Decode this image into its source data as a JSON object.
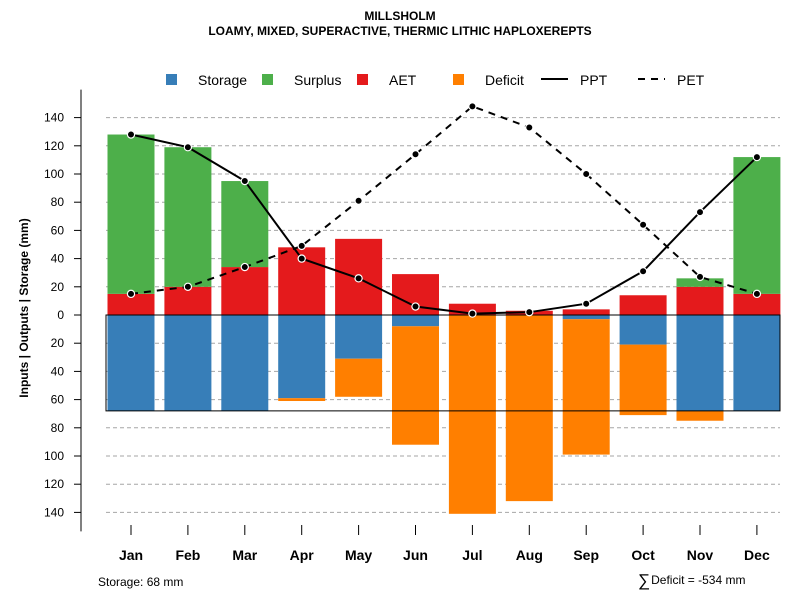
{
  "title": "MILLSHOLM",
  "subtitle": "LOAMY, MIXED, SUPERACTIVE, THERMIC LITHIC HAPLOXEREPTS",
  "legend": [
    {
      "key": "storage",
      "label": "Storage",
      "kind": "box"
    },
    {
      "key": "surplus",
      "label": "Surplus",
      "kind": "box"
    },
    {
      "key": "aet",
      "label": "AET",
      "kind": "box"
    },
    {
      "key": "deficit",
      "label": "Deficit",
      "kind": "box"
    },
    {
      "key": "ppt",
      "label": "PPT",
      "kind": "solid"
    },
    {
      "key": "pet",
      "label": "PET",
      "kind": "dashed"
    }
  ],
  "colors": {
    "storage": "#377EB8",
    "surplus": "#4DAF4A",
    "aet": "#E41A1C",
    "deficit": "#FF7F00",
    "grid": "#a6a6a6",
    "line": "#000000"
  },
  "footer": {
    "storage_text": "Storage: 68 mm",
    "deficit_text": "Deficit = -534 mm"
  },
  "chart_data": {
    "type": "bar",
    "ylabel": "Inputs | Outputs | Storage    (mm)",
    "ylim": [
      -140,
      140
    ],
    "yticks": [
      140,
      120,
      100,
      80,
      60,
      40,
      20,
      0,
      20,
      40,
      60,
      80,
      100,
      120,
      140
    ],
    "grid": true,
    "storage_capacity": 68,
    "categories": [
      "Jan",
      "Feb",
      "Mar",
      "Apr",
      "May",
      "Jun",
      "Jul",
      "Aug",
      "Sep",
      "Oct",
      "Nov",
      "Dec"
    ],
    "series": [
      {
        "name": "AET",
        "values": [
          15,
          20,
          34,
          48,
          54,
          29,
          8,
          3,
          4,
          14,
          20,
          15
        ]
      },
      {
        "name": "Surplus",
        "values": [
          113,
          99,
          61,
          0,
          0,
          0,
          0,
          0,
          0,
          0,
          6,
          97
        ]
      },
      {
        "name": "Storage",
        "values": [
          68,
          68,
          68,
          59,
          31,
          8,
          0,
          0,
          3,
          21,
          68,
          68
        ]
      },
      {
        "name": "Deficit",
        "values": [
          0,
          0,
          0,
          2,
          27,
          84,
          141,
          132,
          96,
          50,
          7,
          0
        ]
      },
      {
        "name": "PPT",
        "values": [
          128,
          119,
          95,
          40,
          26,
          6,
          1,
          2,
          8,
          31,
          73,
          112
        ]
      },
      {
        "name": "PET",
        "values": [
          15,
          20,
          34,
          49,
          81,
          114,
          148,
          133,
          100,
          64,
          27,
          15
        ]
      }
    ]
  }
}
